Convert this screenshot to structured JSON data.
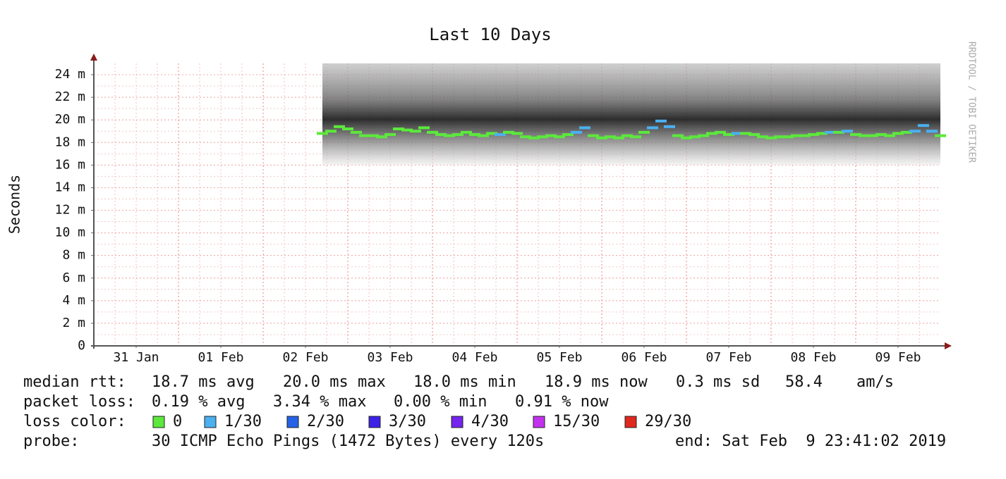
{
  "chart_data": {
    "type": "smokeping",
    "title": "Last 10 Days",
    "ylabel": "Seconds",
    "watermark": "RRDTOOL / TOBI OETIKER",
    "xlim": [
      0,
      10
    ],
    "xticks": [
      {
        "value": 0.5,
        "label": "31 Jan"
      },
      {
        "value": 1.5,
        "label": "01 Feb"
      },
      {
        "value": 2.5,
        "label": "02 Feb"
      },
      {
        "value": 3.5,
        "label": "03 Feb"
      },
      {
        "value": 4.5,
        "label": "04 Feb"
      },
      {
        "value": 5.5,
        "label": "05 Feb"
      },
      {
        "value": 6.5,
        "label": "06 Feb"
      },
      {
        "value": 7.5,
        "label": "07 Feb"
      },
      {
        "value": 8.5,
        "label": "08 Feb"
      },
      {
        "value": 9.5,
        "label": "09 Feb"
      }
    ],
    "ylim": [
      0,
      0.025
    ],
    "yticks": [
      0,
      {
        "value": 0.002,
        "label": "2 m"
      },
      {
        "value": 0.004,
        "label": "4 m"
      },
      {
        "value": 0.006,
        "label": "6 m"
      },
      {
        "value": 0.008,
        "label": "8 m"
      },
      {
        "value": 0.01,
        "label": "10 m"
      },
      {
        "value": 0.012,
        "label": "12 m"
      },
      {
        "value": 0.014,
        "label": "14 m"
      },
      {
        "value": 0.016,
        "label": "16 m"
      },
      {
        "value": 0.018,
        "label": "18 m"
      },
      {
        "value": 0.02,
        "label": "20 m"
      },
      {
        "value": 0.022,
        "label": "22 m"
      },
      {
        "value": 0.024,
        "label": "24 m"
      }
    ],
    "grid": true,
    "smoke": {
      "min": 0.016,
      "max": 0.025
    },
    "x": [
      2.7,
      2.8,
      2.9,
      3.0,
      3.1,
      3.2,
      3.3,
      3.4,
      3.5,
      3.6,
      3.7,
      3.8,
      3.9,
      4.0,
      4.1,
      4.2,
      4.3,
      4.4,
      4.5,
      4.6,
      4.7,
      4.8,
      4.9,
      5.0,
      5.1,
      5.2,
      5.3,
      5.4,
      5.5,
      5.6,
      5.7,
      5.8,
      5.9,
      6.0,
      6.1,
      6.2,
      6.3,
      6.4,
      6.5,
      6.6,
      6.7,
      6.8,
      6.9,
      7.0,
      7.1,
      7.2,
      7.3,
      7.4,
      7.5,
      7.6,
      7.7,
      7.8,
      7.9,
      8.0,
      8.1,
      8.2,
      8.3,
      8.4,
      8.5,
      8.6,
      8.7,
      8.8,
      8.9,
      9.0,
      9.1,
      9.2,
      9.3,
      9.4,
      9.5,
      9.6,
      9.7,
      9.8,
      9.9,
      10.0
    ],
    "values": [
      0.0188,
      0.019,
      0.0194,
      0.0192,
      0.0189,
      0.0186,
      0.0186,
      0.0185,
      0.0187,
      0.0192,
      0.0191,
      0.019,
      0.0193,
      0.0189,
      0.0187,
      0.0186,
      0.0187,
      0.0189,
      0.0187,
      0.0186,
      0.0188,
      0.0187,
      0.0189,
      0.0188,
      0.0185,
      0.0184,
      0.0185,
      0.0186,
      0.0185,
      0.0187,
      0.0189,
      0.0193,
      0.0186,
      0.0184,
      0.0185,
      0.0184,
      0.0186,
      0.0185,
      0.0189,
      0.0193,
      0.0199,
      0.0194,
      0.0186,
      0.0184,
      0.0185,
      0.0186,
      0.0188,
      0.0189,
      0.0187,
      0.0188,
      0.0188,
      0.0187,
      0.0185,
      0.0184,
      0.0185,
      0.0185,
      0.0186,
      0.0186,
      0.0187,
      0.0188,
      0.0189,
      0.0189,
      0.019,
      0.0187,
      0.0186,
      0.0186,
      0.0187,
      0.0186,
      0.0188,
      0.0189,
      0.019,
      0.0195,
      0.019,
      0.0186
    ],
    "loss": [
      0,
      0,
      0,
      0,
      0,
      0,
      0,
      0,
      0,
      0,
      0,
      0,
      0,
      0,
      0,
      0,
      0,
      0,
      0,
      0,
      0,
      1,
      0,
      0,
      0,
      0,
      0,
      0,
      0,
      0,
      1,
      1,
      0,
      0,
      0,
      0,
      0,
      0,
      0,
      1,
      1,
      1,
      0,
      0,
      0,
      0,
      0,
      0,
      0,
      1,
      0,
      0,
      0,
      0,
      0,
      0,
      0,
      0,
      0,
      0,
      1,
      0,
      1,
      0,
      0,
      0,
      0,
      0,
      0,
      0,
      1,
      1,
      1,
      0
    ]
  },
  "stats": [
    {
      "label": "median rtt:",
      "items": [
        "18.7 ms avg",
        "20.0 ms max",
        "18.0 ms min",
        "18.9 ms now",
        "0.3 ms sd",
        "58.4",
        "am/s"
      ]
    },
    {
      "label": "packet loss:",
      "items": [
        "0.19 % avg",
        "3.34 % max",
        "0.00 % min",
        "0.91 % now"
      ]
    }
  ],
  "loss_colors": {
    "label": "loss color:",
    "items": [
      {
        "name": "0",
        "color": "#5ce83c"
      },
      {
        "name": "1/30",
        "color": "#4ab0f0"
      },
      {
        "name": "2/30",
        "color": "#2462e6"
      },
      {
        "name": "3/30",
        "color": "#3c22e6"
      },
      {
        "name": "4/30",
        "color": "#7424ee"
      },
      {
        "name": "15/30",
        "color": "#c232ee"
      },
      {
        "name": "29/30",
        "color": "#e0281e"
      }
    ]
  },
  "probe": {
    "label": "probe:",
    "text": "30 ICMP Echo Pings (1472 Bytes) every 120s",
    "end": "end: Sat Feb  9 23:41:02 2019"
  }
}
